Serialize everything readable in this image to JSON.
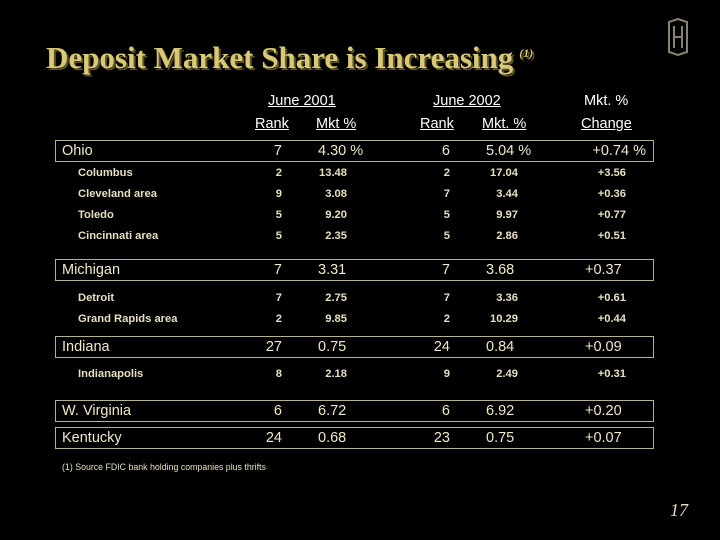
{
  "title": "Deposit Market Share is Increasing",
  "title_note": "(1)",
  "headers": {
    "june2001": "June 2001",
    "june2002": "June 2002",
    "mkt_pct": "Mkt. %",
    "rank_2001": "Rank",
    "mkt_2001": "Mkt %",
    "rank_2002": "Rank",
    "mkt_2002": "Mkt. %",
    "change": "Change"
  },
  "rows": [
    {
      "name": "Ohio",
      "rank2001": "7",
      "mkt2001": "4.30 %",
      "rank2002": "6",
      "mkt2002": "5.04 %",
      "change": "+0.74 %"
    },
    {
      "name": "Columbus",
      "rank2001": "2",
      "mkt2001": "13.48",
      "rank2002": "2",
      "mkt2002": "17.04",
      "change": "+3.56"
    },
    {
      "name": "Cleveland area",
      "rank2001": "9",
      "mkt2001": "3.08",
      "rank2002": "7",
      "mkt2002": "3.44",
      "change": "+0.36"
    },
    {
      "name": "Toledo",
      "rank2001": "5",
      "mkt2001": "9.20",
      "rank2002": "5",
      "mkt2002": "9.97",
      "change": "+0.77"
    },
    {
      "name": "Cincinnati area",
      "rank2001": "5",
      "mkt2001": "2.35",
      "rank2002": "5",
      "mkt2002": "2.86",
      "change": "+0.51"
    },
    {
      "name": "Michigan",
      "rank2001": "7",
      "mkt2001": "3.31",
      "rank2002": "7",
      "mkt2002": "3.68",
      "change": "+0.37"
    },
    {
      "name": "Detroit",
      "rank2001": "7",
      "mkt2001": "2.75",
      "rank2002": "7",
      "mkt2002": "3.36",
      "change": "+0.61"
    },
    {
      "name": "Grand Rapids area",
      "rank2001": "2",
      "mkt2001": "9.85",
      "rank2002": "2",
      "mkt2002": "10.29",
      "change": "+0.44"
    },
    {
      "name": "Indiana",
      "rank2001": "27",
      "mkt2001": "0.75",
      "rank2002": "24",
      "mkt2002": "0.84",
      "change": "+0.09"
    },
    {
      "name": "Indianapolis",
      "rank2001": "8",
      "mkt2001": "2.18",
      "rank2002": "9",
      "mkt2002": "2.49",
      "change": "+0.31"
    },
    {
      "name": "W. Virginia",
      "rank2001": "6",
      "mkt2001": "6.72",
      "rank2002": "6",
      "mkt2002": "6.92",
      "change": "+0.20"
    },
    {
      "name": "Kentucky",
      "rank2001": "24",
      "mkt2001": "0.68",
      "rank2002": "23",
      "mkt2002": "0.75",
      "change": "+0.07"
    }
  ],
  "footnote": "(1) Source FDIC bank holding companies plus thrifts",
  "page_number": "17",
  "colors": {
    "background": "#000000",
    "title": "#d8c878",
    "text": "#e6dfc0",
    "box_border": "#b8b090"
  },
  "logo_icon": "huntington-logo-icon"
}
